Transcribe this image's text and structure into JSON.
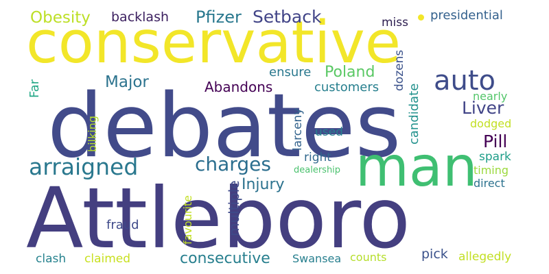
{
  "words": [
    {
      "text": "debates",
      "color": "#424b8a",
      "rotated": false
    },
    {
      "text": "Attleboro",
      "color": "#443f80",
      "rotated": false
    },
    {
      "text": "conservative",
      "color": "#f2e629",
      "rotated": false
    },
    {
      "text": "man",
      "color": "#3fbf72",
      "rotated": false
    },
    {
      "text": "arraigned",
      "color": "#2a788e",
      "rotated": false
    },
    {
      "text": "charges",
      "color": "#2b6e8e",
      "rotated": false
    },
    {
      "text": "auto",
      "color": "#3e4c8a",
      "rotated": false
    },
    {
      "text": "Setback",
      "color": "#414487",
      "rotated": false
    },
    {
      "text": "Pfizer",
      "color": "#29788e",
      "rotated": false
    },
    {
      "text": "Obesity",
      "color": "#bddf26",
      "rotated": false
    },
    {
      "text": "backlash",
      "color": "#3b1f5f",
      "rotated": false
    },
    {
      "text": "presidential",
      "color": "#34618d",
      "rotated": false
    },
    {
      "text": "miss",
      "color": "#2b1c4f",
      "rotated": false
    },
    {
      "text": "Major",
      "color": "#2c738e",
      "rotated": false
    },
    {
      "text": "Abandons",
      "color": "#440154",
      "rotated": false
    },
    {
      "text": "Poland",
      "color": "#5ac864",
      "rotated": false
    },
    {
      "text": "ensure",
      "color": "#2a788e",
      "rotated": false
    },
    {
      "text": "customers",
      "color": "#277f8e",
      "rotated": false
    },
    {
      "text": "Liver",
      "color": "#414487",
      "rotated": false
    },
    {
      "text": "nearly",
      "color": "#52c569",
      "rotated": false
    },
    {
      "text": "dodged",
      "color": "#c2df23",
      "rotated": false
    },
    {
      "text": "Pill",
      "color": "#440154",
      "rotated": false
    },
    {
      "text": "used",
      "color": "#277f8e",
      "rotated": false
    },
    {
      "text": "right",
      "color": "#31688e",
      "rotated": false
    },
    {
      "text": "spark",
      "color": "#1f9e89",
      "rotated": false
    },
    {
      "text": "timing",
      "color": "#9bd93c",
      "rotated": false
    },
    {
      "text": "dealership",
      "color": "#4ac16d",
      "rotated": false
    },
    {
      "text": "direct",
      "color": "#2c728e",
      "rotated": false
    },
    {
      "text": "Injury",
      "color": "#2c728e",
      "rotated": false
    },
    {
      "text": "fraud",
      "color": "#3e4989",
      "rotated": false
    },
    {
      "text": "clash",
      "color": "#26828e",
      "rotated": false
    },
    {
      "text": "claimed",
      "color": "#c8e020",
      "rotated": false
    },
    {
      "text": "consecutive",
      "color": "#277f8e",
      "rotated": false
    },
    {
      "text": "Swansea",
      "color": "#277f8e",
      "rotated": false
    },
    {
      "text": "counts",
      "color": "#b5de2b",
      "rotated": false
    },
    {
      "text": "pick",
      "color": "#3b528b",
      "rotated": false
    },
    {
      "text": "allegedly",
      "color": "#c2df23",
      "rotated": false
    },
    {
      "text": "Far",
      "color": "#22a785",
      "rotated": true
    },
    {
      "text": "bilking",
      "color": "#b5de2b",
      "rotated": true
    },
    {
      "text": "larceny",
      "color": "#33638d",
      "rotated": true
    },
    {
      "text": "candidate",
      "color": "#21918c",
      "rotated": true
    },
    {
      "text": "dozens",
      "color": "#3b528b",
      "rotated": true
    },
    {
      "text": "favourite",
      "color": "#c2df23",
      "rotated": true
    },
    {
      "text": "multiple",
      "color": "#3e4a89",
      "rotated": true
    }
  ]
}
